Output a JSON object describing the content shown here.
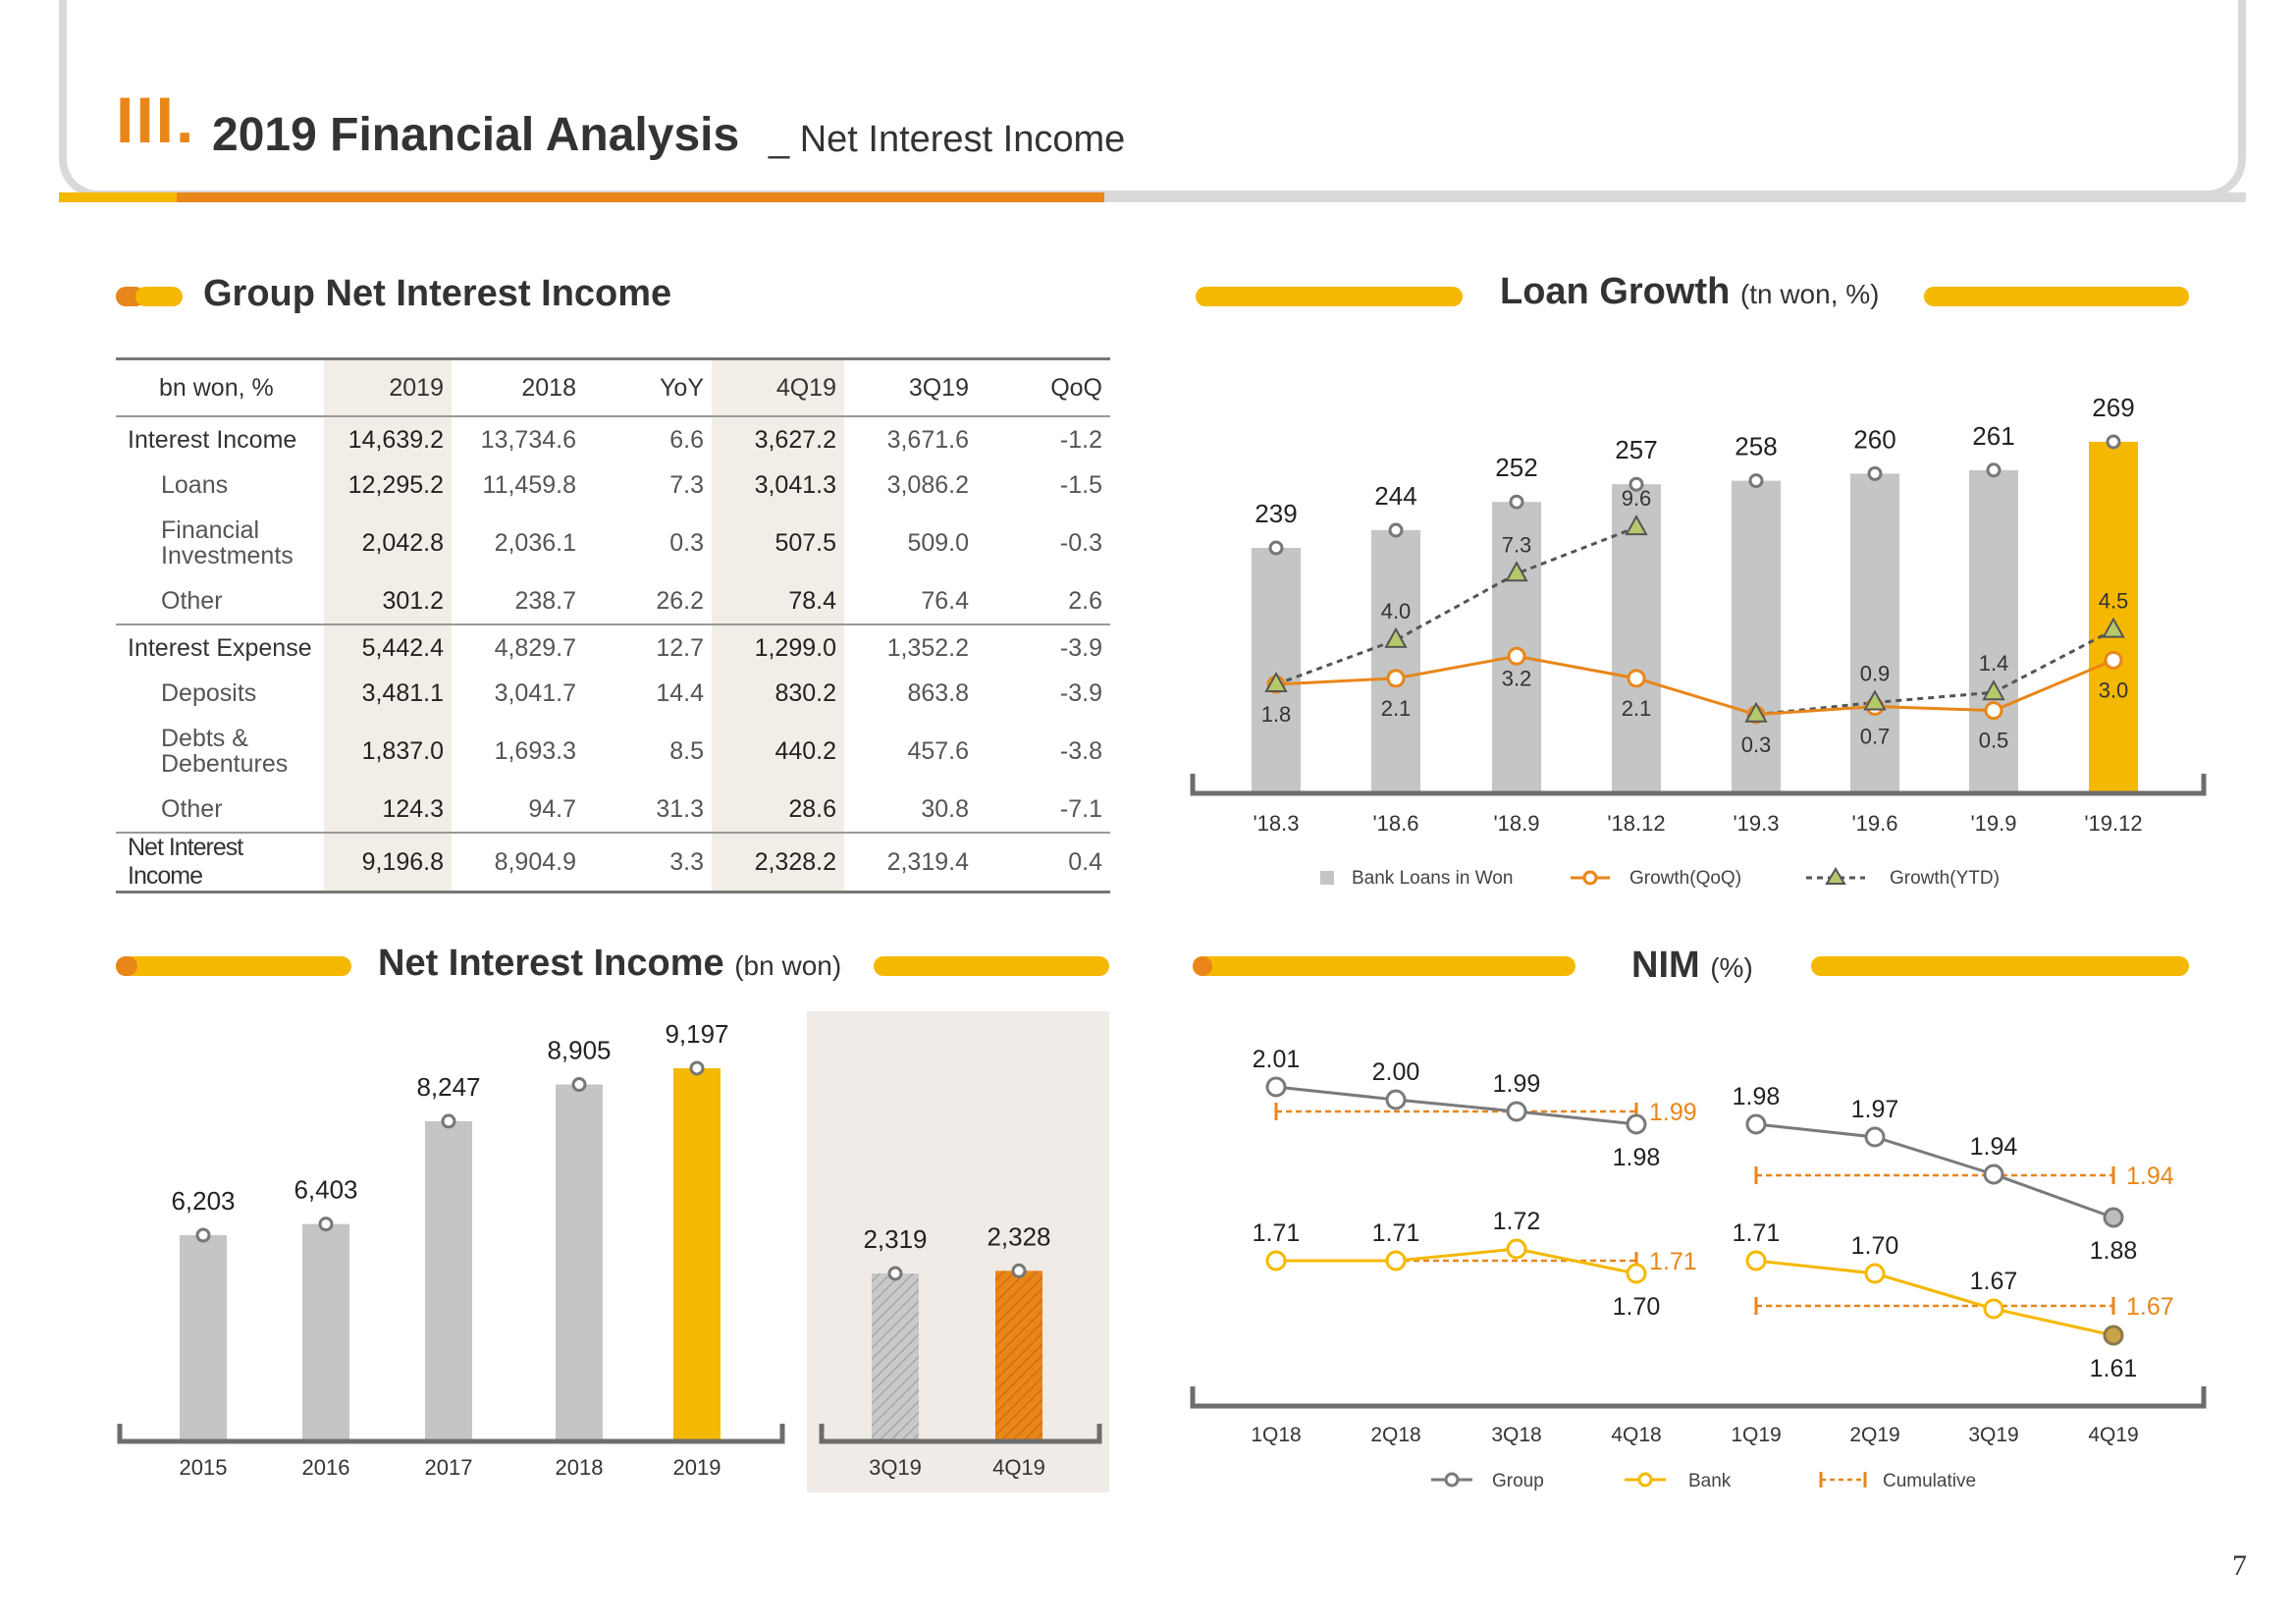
{
  "header": {
    "roman": "III.",
    "title": "2019 Financial Analysis",
    "subtitle": "_ Net Interest Income"
  },
  "page_number": "7",
  "colors": {
    "orange": "#e8861a",
    "yellow": "#f5b800",
    "grey_bar": "#c4c5c5",
    "dark_grey": "#6d6d6d"
  },
  "group_nii": {
    "title": "Group Net Interest Income",
    "headers": [
      "bn won, %",
      "2019",
      "2018",
      "YoY",
      "4Q19",
      "3Q19",
      "QoQ"
    ],
    "rows": [
      {
        "label": "Interest Income",
        "values": [
          "14,639.2",
          "13,734.6",
          "6.6",
          "3,627.2",
          "3,671.6",
          "-1.2"
        ]
      },
      {
        "label": "Loans",
        "values": [
          "12,295.2",
          "11,459.8",
          "7.3",
          "3,041.3",
          "3,086.2",
          "-1.5"
        ]
      },
      {
        "label": "Financial Investments",
        "values": [
          "2,042.8",
          "2,036.1",
          "0.3",
          "507.5",
          "509.0",
          "-0.3"
        ]
      },
      {
        "label": "Other",
        "values": [
          "301.2",
          "238.7",
          "26.2",
          "78.4",
          "76.4",
          "2.6"
        ]
      },
      {
        "label": "Interest Expense",
        "values": [
          "5,442.4",
          "4,829.7",
          "12.7",
          "1,299.0",
          "1,352.2",
          "-3.9"
        ]
      },
      {
        "label": "Deposits",
        "values": [
          "3,481.1",
          "3,041.7",
          "14.4",
          "830.2",
          "863.8",
          "-3.9"
        ]
      },
      {
        "label": "Debts & Debentures",
        "values": [
          "1,837.0",
          "1,693.3",
          "8.5",
          "440.2",
          "457.6",
          "-3.8"
        ]
      },
      {
        "label": "Other",
        "values": [
          "124.3",
          "94.7",
          "31.3",
          "28.6",
          "30.8",
          "-7.1"
        ]
      },
      {
        "label": "Net Interest Income",
        "values": [
          "9,196.8",
          "8,904.9",
          "3.3",
          "2,328.2",
          "2,319.4",
          "0.4"
        ]
      }
    ]
  },
  "loan_growth_section": {
    "title": "Loan Growth",
    "unit": "(tn won, %)"
  },
  "nii_section": {
    "title": "Net Interest Income",
    "unit": "(bn won)"
  },
  "nim_section": {
    "title": "NIM",
    "unit": "(%)"
  },
  "chart_data": [
    {
      "id": "loan_growth",
      "type": "bar",
      "title": "Loan Growth",
      "unit": "(tn won, %)",
      "categories": [
        "'18.3",
        "'18.6",
        "'18.9",
        "'18.12",
        "'19.3",
        "'19.6",
        "'19.9",
        "'19.12"
      ],
      "series": [
        {
          "name": "Bank Loans in Won",
          "type": "bar",
          "values": [
            239,
            244,
            252,
            257,
            258,
            260,
            261,
            269
          ]
        },
        {
          "name": "Growth(QoQ)",
          "type": "line",
          "values": [
            1.8,
            2.1,
            3.2,
            2.1,
            0.3,
            0.7,
            0.5,
            3.0
          ]
        },
        {
          "name": "Growth(YTD)",
          "type": "line",
          "values": [
            1.8,
            4.0,
            7.3,
            9.6,
            0.3,
            0.9,
            1.4,
            4.5
          ]
        }
      ],
      "legend": "bottom"
    },
    {
      "id": "nii_annual",
      "type": "bar",
      "title": "Net Interest Income",
      "unit": "(bn won)",
      "categories": [
        "2015",
        "2016",
        "2017",
        "2018",
        "2019"
      ],
      "values": [
        6203,
        6403,
        8247,
        8905,
        9197
      ],
      "labels": [
        "6,203",
        "6,403",
        "8,247",
        "8,905",
        "9,197"
      ]
    },
    {
      "id": "nii_quarterly",
      "type": "bar",
      "categories": [
        "3Q19",
        "4Q19"
      ],
      "values": [
        2319,
        2328
      ],
      "labels": [
        "2,319",
        "2,328"
      ]
    },
    {
      "id": "nim",
      "type": "line",
      "title": "NIM",
      "unit": "(%)",
      "categories": [
        "1Q18",
        "2Q18",
        "3Q18",
        "4Q18",
        "1Q19",
        "2Q19",
        "3Q19",
        "4Q19"
      ],
      "series": [
        {
          "name": "Group",
          "values": [
            2.01,
            2.0,
            1.99,
            1.98,
            1.98,
            1.97,
            1.94,
            1.88
          ]
        },
        {
          "name": "Bank",
          "values": [
            1.71,
            1.71,
            1.72,
            1.7,
            1.71,
            1.7,
            1.67,
            1.61
          ]
        }
      ],
      "cumulative": [
        {
          "name": "Cumulative",
          "series": "Group",
          "period": "2018",
          "value": 1.99
        },
        {
          "name": "Cumulative",
          "series": "Bank",
          "period": "2018",
          "value": 1.71
        },
        {
          "name": "Cumulative",
          "series": "Group",
          "period": "2019",
          "value": 1.94
        },
        {
          "name": "Cumulative",
          "series": "Bank",
          "period": "2019",
          "value": 1.67
        }
      ],
      "legend": [
        "Group",
        "Bank",
        "Cumulative"
      ]
    }
  ]
}
